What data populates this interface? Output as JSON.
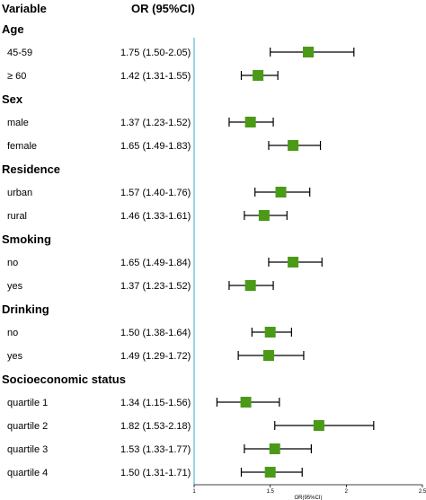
{
  "header": {
    "variable_label": "Variable",
    "or_label": "OR (95%CI)"
  },
  "chart_data": {
    "type": "forest",
    "xlabel": "OR(95%CI)",
    "xlim": [
      1,
      2.5
    ],
    "xticks": [
      "1",
      "1.5",
      "2",
      "2.5"
    ],
    "reference_line": 1,
    "marker_color": "#4a9a17",
    "reference_color": "#5bbcd0",
    "groups": [
      {
        "name": "Age",
        "rows": [
          {
            "label": "45-59",
            "or_text": "1.75 (1.50-2.05)",
            "or": 1.75,
            "lo": 1.5,
            "hi": 2.05
          },
          {
            "label": "≥ 60",
            "or_text": "1.42 (1.31-1.55)",
            "or": 1.42,
            "lo": 1.31,
            "hi": 1.55
          }
        ]
      },
      {
        "name": "Sex",
        "rows": [
          {
            "label": "male",
            "or_text": "1.37 (1.23-1.52)",
            "or": 1.37,
            "lo": 1.23,
            "hi": 1.52
          },
          {
            "label": "female",
            "or_text": "1.65 (1.49-1.83)",
            "or": 1.65,
            "lo": 1.49,
            "hi": 1.83
          }
        ]
      },
      {
        "name": "Residence",
        "rows": [
          {
            "label": "urban",
            "or_text": "1.57 (1.40-1.76)",
            "or": 1.57,
            "lo": 1.4,
            "hi": 1.76
          },
          {
            "label": "rural",
            "or_text": "1.46 (1.33-1.61)",
            "or": 1.46,
            "lo": 1.33,
            "hi": 1.61
          }
        ]
      },
      {
        "name": "Smoking",
        "rows": [
          {
            "label": "no",
            "or_text": "1.65 (1.49-1.84)",
            "or": 1.65,
            "lo": 1.49,
            "hi": 1.84
          },
          {
            "label": "yes",
            "or_text": "1.37 (1.23-1.52)",
            "or": 1.37,
            "lo": 1.23,
            "hi": 1.52
          }
        ]
      },
      {
        "name": "Drinking",
        "rows": [
          {
            "label": "no",
            "or_text": "1.50 (1.38-1.64)",
            "or": 1.5,
            "lo": 1.38,
            "hi": 1.64
          },
          {
            "label": "yes",
            "or_text": "1.49 (1.29-1.72)",
            "or": 1.49,
            "lo": 1.29,
            "hi": 1.72
          }
        ]
      },
      {
        "name": "Socioeconomic status",
        "rows": [
          {
            "label": "quartile 1",
            "or_text": "1.34 (1.15-1.56)",
            "or": 1.34,
            "lo": 1.15,
            "hi": 1.56
          },
          {
            "label": "quartile 2",
            "or_text": "1.82 (1.53-2.18)",
            "or": 1.82,
            "lo": 1.53,
            "hi": 2.18
          },
          {
            "label": "quartile 3",
            "or_text": "1.53 (1.33-1.77)",
            "or": 1.53,
            "lo": 1.33,
            "hi": 1.77
          },
          {
            "label": "quartile 4",
            "or_text": "1.50 (1.31-1.71)",
            "or": 1.5,
            "lo": 1.31,
            "hi": 1.71
          }
        ]
      }
    ]
  }
}
